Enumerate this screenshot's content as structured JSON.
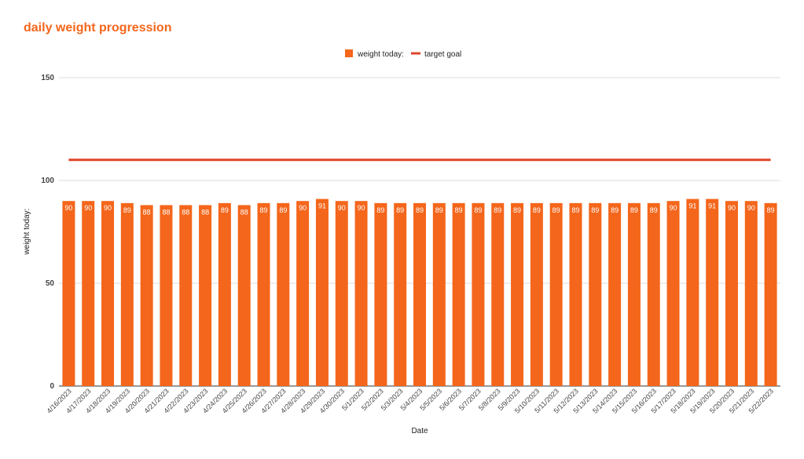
{
  "chart_data": {
    "type": "bar",
    "title": "daily weight progression",
    "xlabel": "Date",
    "ylabel": "weight today:",
    "ylim": [
      0,
      150
    ],
    "yticks": [
      0,
      50,
      100,
      150
    ],
    "grid": true,
    "legend_position": "top-center",
    "categories": [
      "4/16/2023",
      "4/17/2023",
      "4/18/2023",
      "4/19/2023",
      "4/20/2023",
      "4/21/2023",
      "4/22/2023",
      "4/23/2023",
      "4/24/2023",
      "4/25/2023",
      "4/26/2023",
      "4/27/2023",
      "4/28/2023",
      "4/29/2023",
      "4/30/2023",
      "5/1/2023",
      "5/2/2023",
      "5/3/2023",
      "5/4/2023",
      "5/5/2023",
      "5/6/2023",
      "5/7/2023",
      "5/8/2023",
      "5/9/2023",
      "5/10/2023",
      "5/11/2023",
      "5/12/2023",
      "5/13/2023",
      "5/14/2023",
      "5/15/2023",
      "5/16/2023",
      "5/17/2023",
      "5/18/2023",
      "5/19/2023",
      "5/20/2023",
      "5/21/2023",
      "5/22/2023"
    ],
    "series": [
      {
        "name": "weight today:",
        "kind": "bar",
        "color": "#f4661b",
        "values": [
          90,
          90,
          90,
          89,
          88,
          88,
          88,
          88,
          89,
          88,
          89,
          89,
          90,
          91,
          90,
          90,
          89,
          89,
          89,
          89,
          89,
          89,
          89,
          89,
          89,
          89,
          89,
          89,
          89,
          89,
          89,
          90,
          91,
          91,
          90,
          90,
          89
        ]
      },
      {
        "name": "target goal",
        "kind": "line",
        "color": "#e0452a",
        "value": 110
      }
    ],
    "colors": {
      "title": "#f4661b",
      "text": "#222222",
      "axis_text": "#444444",
      "grid": "#dddddd",
      "baseline": "#333333",
      "data_label": "#ffffff"
    }
  }
}
